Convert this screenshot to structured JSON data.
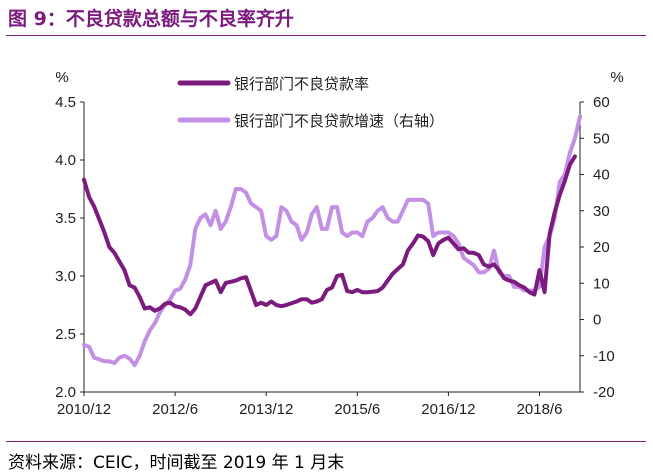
{
  "title": "图 9：不良贷款总额与不良率齐升",
  "source": "资料来源：CEIC，时间截至 2019 年 1 月末",
  "chart_data": {
    "type": "line",
    "left_unit": "%",
    "right_unit": "%",
    "ylim_left": [
      2.0,
      4.5
    ],
    "ylim_right": [
      -20,
      60
    ],
    "yticks_left": [
      "4.5",
      "4.0",
      "3.5",
      "3.0",
      "2.5",
      "2.0"
    ],
    "yticks_right": [
      "60",
      "50",
      "40",
      "30",
      "20",
      "10",
      "0",
      "-10",
      "-20"
    ],
    "x_ticks": [
      "2010/12",
      "2012/6",
      "2013/12",
      "2015/6",
      "2016/12",
      "2018/6"
    ],
    "x_tick_index": [
      0,
      18,
      36,
      54,
      72,
      90
    ],
    "x_count": 99,
    "series": [
      {
        "name": "银行部门不良贷款率",
        "axis": "left",
        "color": "#7b1b7e",
        "points": [
          [
            0,
            3.83
          ],
          [
            1,
            3.68
          ],
          [
            2,
            3.6
          ],
          [
            4,
            3.38
          ],
          [
            5,
            3.25
          ],
          [
            6,
            3.2
          ],
          [
            8,
            3.05
          ],
          [
            9,
            2.92
          ],
          [
            10,
            2.9
          ],
          [
            11,
            2.82
          ],
          [
            12,
            2.72
          ],
          [
            13,
            2.73
          ],
          [
            14,
            2.7
          ],
          [
            15,
            2.72
          ],
          [
            16,
            2.76
          ],
          [
            17,
            2.77
          ],
          [
            18,
            2.74
          ],
          [
            19,
            2.73
          ],
          [
            20,
            2.71
          ],
          [
            21,
            2.67
          ],
          [
            22,
            2.72
          ],
          [
            23,
            2.82
          ],
          [
            24,
            2.92
          ],
          [
            26,
            2.96
          ],
          [
            27,
            2.86
          ],
          [
            28,
            2.94
          ],
          [
            30,
            2.96
          ],
          [
            31,
            2.98
          ],
          [
            32,
            2.99
          ],
          [
            33,
            2.87
          ],
          [
            34,
            2.75
          ],
          [
            35,
            2.77
          ],
          [
            36,
            2.75
          ],
          [
            37,
            2.78
          ],
          [
            38,
            2.75
          ],
          [
            39,
            2.74
          ],
          [
            40,
            2.75
          ],
          [
            42,
            2.78
          ],
          [
            43,
            2.8
          ],
          [
            44,
            2.8
          ],
          [
            45,
            2.77
          ],
          [
            46,
            2.78
          ],
          [
            47,
            2.8
          ],
          [
            48,
            2.88
          ],
          [
            49,
            2.9
          ],
          [
            50,
            3.0
          ],
          [
            51,
            3.01
          ],
          [
            52,
            2.87
          ],
          [
            53,
            2.86
          ],
          [
            54,
            2.88
          ],
          [
            55,
            2.86
          ],
          [
            56,
            2.86
          ],
          [
            58,
            2.87
          ],
          [
            59,
            2.9
          ],
          [
            60,
            2.96
          ],
          [
            61,
            3.02
          ],
          [
            62,
            3.06
          ],
          [
            63,
            3.1
          ],
          [
            64,
            3.22
          ],
          [
            65,
            3.28
          ],
          [
            66,
            3.35
          ],
          [
            67,
            3.34
          ],
          [
            68,
            3.3
          ],
          [
            69,
            3.18
          ],
          [
            70,
            3.28
          ],
          [
            71,
            3.31
          ],
          [
            72,
            3.33
          ],
          [
            73,
            3.28
          ],
          [
            74,
            3.23
          ],
          [
            75,
            3.24
          ],
          [
            76,
            3.2
          ],
          [
            77,
            3.2
          ],
          [
            78,
            3.18
          ],
          [
            79,
            3.1
          ],
          [
            80,
            3.08
          ],
          [
            81,
            3.1
          ],
          [
            82,
            3.05
          ],
          [
            83,
            2.98
          ],
          [
            84,
            2.96
          ],
          [
            85,
            2.95
          ],
          [
            86,
            2.92
          ],
          [
            87,
            2.9
          ],
          [
            88,
            2.86
          ],
          [
            89,
            2.84
          ],
          [
            90,
            3.05
          ],
          [
            91,
            2.86
          ],
          [
            92,
            3.36
          ],
          [
            93,
            3.55
          ],
          [
            94,
            3.7
          ],
          [
            95,
            3.82
          ],
          [
            96,
            3.96
          ],
          [
            97,
            4.03
          ]
        ]
      },
      {
        "name": "银行部门不良贷款增速（右轴）",
        "axis": "right",
        "color": "#c490e6",
        "points": [
          [
            0,
            -7
          ],
          [
            1,
            -7.5
          ],
          [
            2,
            -10.5
          ],
          [
            3,
            -11
          ],
          [
            4,
            -11.5
          ],
          [
            5,
            -11.5
          ],
          [
            6,
            -12
          ],
          [
            7,
            -10.5
          ],
          [
            8,
            -10
          ],
          [
            9,
            -10.8
          ],
          [
            10,
            -12.6
          ],
          [
            11,
            -10
          ],
          [
            12,
            -6
          ],
          [
            13,
            -3
          ],
          [
            14,
            -1
          ],
          [
            15,
            2
          ],
          [
            16,
            4
          ],
          [
            17,
            5.5
          ],
          [
            18,
            8
          ],
          [
            19,
            8.5
          ],
          [
            20,
            11
          ],
          [
            21,
            15
          ],
          [
            22,
            25
          ],
          [
            23,
            28
          ],
          [
            24,
            29
          ],
          [
            25,
            26
          ],
          [
            26,
            30
          ],
          [
            27,
            25
          ],
          [
            28,
            27
          ],
          [
            29,
            31
          ],
          [
            30,
            36
          ],
          [
            31,
            36
          ],
          [
            32,
            35
          ],
          [
            33,
            32
          ],
          [
            34,
            31
          ],
          [
            35,
            30
          ],
          [
            36,
            23
          ],
          [
            37,
            22
          ],
          [
            38,
            23
          ],
          [
            39,
            31
          ],
          [
            40,
            30
          ],
          [
            41,
            27
          ],
          [
            42,
            26
          ],
          [
            43,
            22
          ],
          [
            44,
            24
          ],
          [
            45,
            29
          ],
          [
            46,
            31
          ],
          [
            47,
            25
          ],
          [
            48,
            25
          ],
          [
            49,
            31
          ],
          [
            50,
            31
          ],
          [
            51,
            24
          ],
          [
            52,
            23
          ],
          [
            53,
            24
          ],
          [
            54,
            24
          ],
          [
            55,
            23
          ],
          [
            56,
            27
          ],
          [
            57,
            28
          ],
          [
            58,
            30
          ],
          [
            59,
            31
          ],
          [
            60,
            28
          ],
          [
            61,
            27
          ],
          [
            62,
            27
          ],
          [
            63,
            30
          ],
          [
            64,
            33
          ],
          [
            65,
            33
          ],
          [
            66,
            33
          ],
          [
            67,
            33
          ],
          [
            68,
            32
          ],
          [
            69,
            23
          ],
          [
            70,
            24
          ],
          [
            71,
            24
          ],
          [
            72,
            24
          ],
          [
            73,
            23
          ],
          [
            74,
            21
          ],
          [
            75,
            17
          ],
          [
            76,
            16
          ],
          [
            77,
            15
          ],
          [
            78,
            13
          ],
          [
            79,
            13
          ],
          [
            80,
            14
          ],
          [
            81,
            19
          ],
          [
            82,
            13
          ],
          [
            83,
            12
          ],
          [
            84,
            12
          ],
          [
            85,
            9
          ],
          [
            86,
            9
          ],
          [
            87,
            8
          ],
          [
            88,
            8
          ],
          [
            89,
            8
          ],
          [
            90,
            9
          ],
          [
            91,
            20
          ],
          [
            92,
            23
          ],
          [
            93,
            28
          ],
          [
            94,
            38
          ],
          [
            95,
            40
          ],
          [
            96,
            46
          ],
          [
            97,
            50
          ],
          [
            98,
            56
          ]
        ]
      }
    ]
  }
}
